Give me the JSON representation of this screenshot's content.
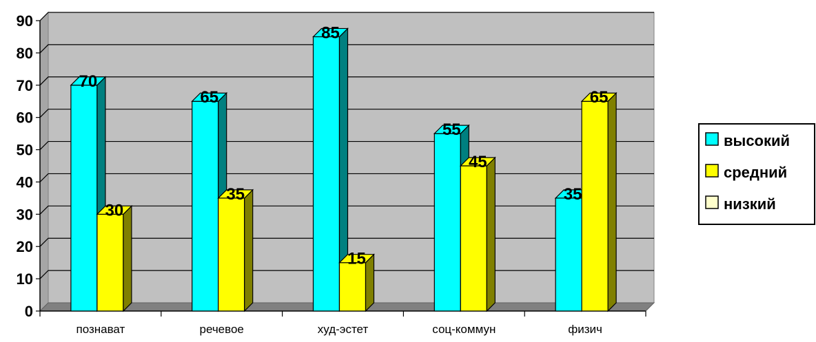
{
  "chart_data": {
    "type": "bar",
    "style": "3d-clustered-column",
    "title": "",
    "xlabel": "",
    "ylabel": "",
    "categories": [
      "познават",
      "речевое",
      "худ-эстет",
      "соц-коммун",
      "физич"
    ],
    "series": [
      {
        "name": "высокий",
        "values": [
          70,
          65,
          85,
          55,
          35
        ],
        "color": "#00FFFF",
        "side_color": "#008080"
      },
      {
        "name": "средний",
        "values": [
          30,
          35,
          15,
          45,
          65
        ],
        "color": "#FFFF00",
        "side_color": "#808000"
      },
      {
        "name": "низкий",
        "values": [
          0,
          0,
          0,
          0,
          0
        ],
        "color": "#FFFFCC",
        "side_color": "#999966"
      }
    ],
    "ylim": [
      0,
      90
    ],
    "yticks": [
      "0",
      "10",
      "20",
      "30",
      "40",
      "50",
      "60",
      "70",
      "80",
      "90"
    ],
    "grid": true,
    "wall_color": "#C0C0C0",
    "legend_position": "right"
  }
}
